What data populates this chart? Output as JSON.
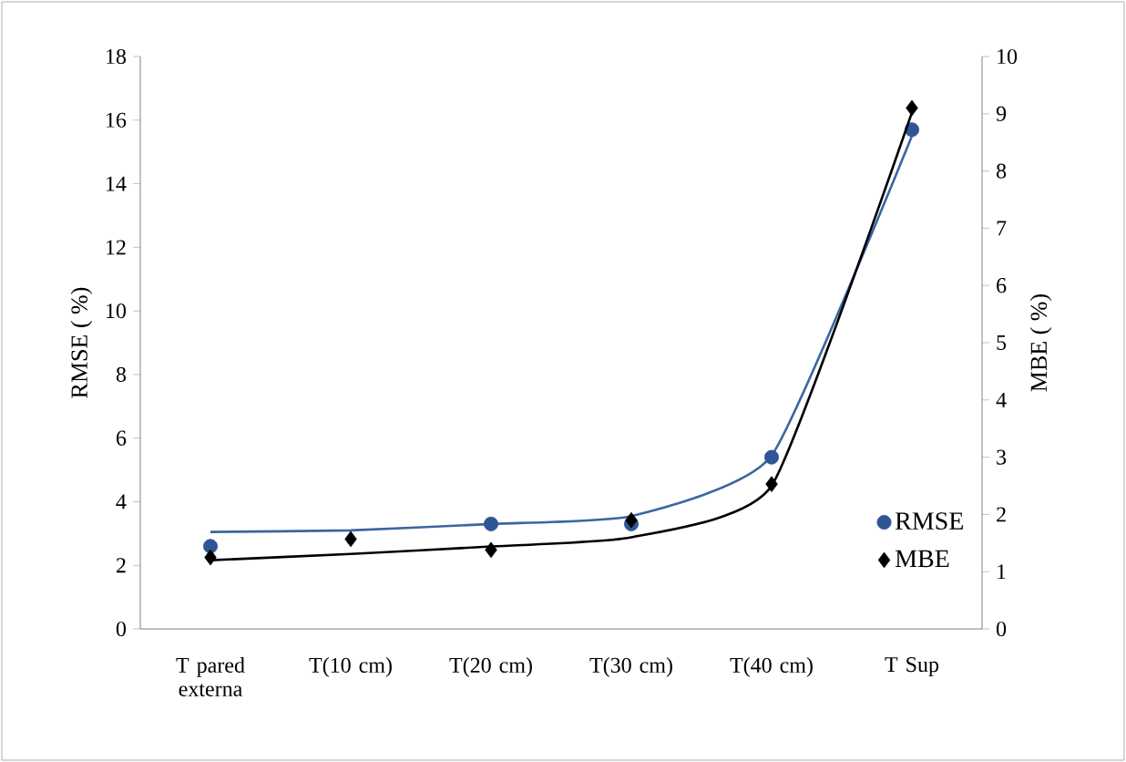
{
  "chart_data": {
    "type": "scatter",
    "categories": [
      "T pared externa",
      "T(10 cm)",
      "T(20 cm)",
      "T(30 cm)",
      "T(40 cm)",
      "T Sup"
    ],
    "ylabel": "RMSE ( %)",
    "y2label": "MBE ( %)",
    "ylim": [
      0,
      18
    ],
    "yticks": [
      0,
      2,
      4,
      6,
      8,
      10,
      12,
      14,
      16,
      18
    ],
    "y2lim": [
      0,
      10
    ],
    "y2ticks": [
      0,
      1,
      2,
      3,
      4,
      5,
      6,
      7,
      8,
      9,
      10
    ],
    "legend": "bottom right",
    "grid": false,
    "series": [
      {
        "name": "RMSE",
        "marker": "circle",
        "color": "#2f5597",
        "values": [
          2.6,
          null,
          3.3,
          3.3,
          5.4,
          15.7
        ]
      },
      {
        "name": "MBE",
        "marker": "diamond",
        "color": "#000000",
        "axis": "y2",
        "values": [
          1.25,
          1.57,
          1.38,
          1.9,
          2.53,
          9.1
        ]
      },
      {
        "type": "line",
        "color": "#3a66a0",
        "values": [
          3.05,
          3.1,
          3.3,
          3.55,
          5.45,
          15.5
        ]
      },
      {
        "type": "line",
        "color": "#000000",
        "axis": "y2",
        "values": [
          1.2,
          1.31,
          1.44,
          1.6,
          2.5,
          9.02
        ]
      }
    ]
  }
}
